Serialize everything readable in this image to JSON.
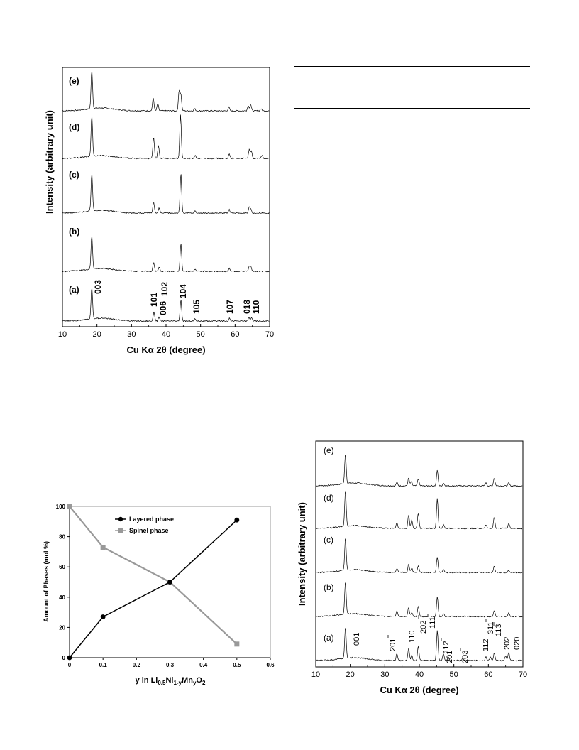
{
  "chart_data": [
    {
      "type": "line",
      "id": "xrd-top",
      "xlabel": "Cu Kα 2θ (degree)",
      "ylabel": "Intensity (arbitrary unit)",
      "xlim": [
        10,
        70
      ],
      "xticks": [
        10,
        20,
        30,
        40,
        50,
        60,
        70
      ],
      "grid": false,
      "series": [
        {
          "name": "(e)",
          "peaks": [
            [
              18.5,
              55
            ],
            [
              36.3,
              18
            ],
            [
              37.6,
              10
            ],
            [
              43.8,
              28
            ],
            [
              44.3,
              22
            ],
            [
              48.3,
              3
            ],
            [
              58.2,
              5
            ],
            [
              63.8,
              7
            ],
            [
              64.5,
              9
            ],
            [
              67.5,
              3
            ]
          ]
        },
        {
          "name": "(d)",
          "peaks": [
            [
              18.5,
              58
            ],
            [
              36.4,
              30
            ],
            [
              37.8,
              18
            ],
            [
              44.2,
              62
            ],
            [
              48.4,
              4
            ],
            [
              58.3,
              6
            ],
            [
              64.1,
              12
            ],
            [
              64.7,
              10
            ],
            [
              67.8,
              4
            ]
          ]
        },
        {
          "name": "(c)",
          "peaks": [
            [
              18.5,
              54
            ],
            [
              36.4,
              16
            ],
            [
              38.0,
              7
            ],
            [
              44.3,
              56
            ],
            [
              48.4,
              3
            ],
            [
              58.3,
              5
            ],
            [
              64.1,
              8
            ],
            [
              64.6,
              6
            ]
          ]
        },
        {
          "name": "(b)",
          "peaks": [
            [
              18.5,
              48
            ],
            [
              36.4,
              12
            ],
            [
              38.0,
              6
            ],
            [
              44.3,
              40
            ],
            [
              48.4,
              3
            ],
            [
              58.3,
              4
            ],
            [
              64.1,
              7
            ],
            [
              64.6,
              6
            ]
          ]
        },
        {
          "name": "(a)",
          "peaks": [
            [
              18.5,
              45
            ],
            [
              36.5,
              13
            ],
            [
              38.0,
              5
            ],
            [
              44.3,
              30
            ],
            [
              48.4,
              3
            ],
            [
              58.4,
              4
            ],
            [
              64.0,
              5
            ],
            [
              64.8,
              5
            ]
          ]
        }
      ],
      "annotations": [
        "003",
        "101",
        "006",
        "102",
        "104",
        "105",
        "107",
        "018",
        "110"
      ]
    },
    {
      "type": "line",
      "id": "phase-fraction",
      "xlabel": "y in Li0.5Ni1-yMnyO2",
      "ylabel": "Amount of Phases (mol %)",
      "xlim": [
        0,
        0.6
      ],
      "ylim": [
        0,
        100
      ],
      "xticks": [
        0,
        0.1,
        0.2,
        0.3,
        0.4,
        0.5,
        0.6
      ],
      "yticks": [
        0,
        20,
        40,
        60,
        80,
        100
      ],
      "legend": "top-center",
      "series": [
        {
          "name": "Layered phase",
          "x": [
            0,
            0.1,
            0.3,
            0.5
          ],
          "y": [
            0,
            27,
            50,
            91
          ],
          "color": "#000000",
          "marker": "circle"
        },
        {
          "name": "Spinel phase",
          "x": [
            0,
            0.1,
            0.3,
            0.5
          ],
          "y": [
            100,
            73,
            50,
            9
          ],
          "color": "#999999",
          "marker": "square"
        }
      ]
    },
    {
      "type": "line",
      "id": "xrd-bottom",
      "xlabel": "Cu Kα 2θ (degree)",
      "ylabel": "Intensity (arbitrary unit)",
      "xlim": [
        10,
        70
      ],
      "xticks": [
        10,
        20,
        30,
        40,
        50,
        60,
        70
      ],
      "grid": false,
      "series": [
        {
          "name": "(e)",
          "peaks": [
            [
              18.6,
              42
            ],
            [
              33.5,
              5
            ],
            [
              36.9,
              11
            ],
            [
              37.7,
              6
            ],
            [
              39.7,
              10
            ],
            [
              45.2,
              22
            ],
            [
              47.0,
              4
            ],
            [
              59.3,
              4
            ],
            [
              61.7,
              11
            ],
            [
              65.9,
              4
            ]
          ]
        },
        {
          "name": "(d)",
          "peaks": [
            [
              18.6,
              50
            ],
            [
              33.5,
              8
            ],
            [
              36.9,
              20
            ],
            [
              37.8,
              12
            ],
            [
              39.7,
              22
            ],
            [
              45.2,
              42
            ],
            [
              47.0,
              5
            ],
            [
              59.3,
              5
            ],
            [
              61.7,
              16
            ],
            [
              65.9,
              7
            ]
          ]
        },
        {
          "name": "(c)",
          "peaks": [
            [
              18.6,
              46
            ],
            [
              33.5,
              6
            ],
            [
              36.9,
              12
            ],
            [
              37.8,
              6
            ],
            [
              39.7,
              9
            ],
            [
              45.2,
              22
            ],
            [
              47.0,
              4
            ],
            [
              61.7,
              9
            ],
            [
              65.9,
              3
            ]
          ]
        },
        {
          "name": "(b)",
          "peaks": [
            [
              18.6,
              46
            ],
            [
              33.5,
              8
            ],
            [
              36.9,
              13
            ],
            [
              37.8,
              6
            ],
            [
              39.7,
              14
            ],
            [
              45.2,
              28
            ],
            [
              47.0,
              4
            ],
            [
              61.7,
              8
            ],
            [
              65.9,
              5
            ]
          ]
        },
        {
          "name": "(a)",
          "peaks": [
            [
              18.6,
              44
            ],
            [
              33.5,
              10
            ],
            [
              36.9,
              18
            ],
            [
              37.8,
              7
            ],
            [
              39.7,
              20
            ],
            [
              45.2,
              42
            ],
            [
              47.0,
              10
            ],
            [
              48.4,
              5
            ],
            [
              52.6,
              3
            ],
            [
              59.3,
              5
            ],
            [
              60.6,
              5
            ],
            [
              61.7,
              10
            ],
            [
              65.0,
              7
            ],
            [
              65.9,
              11
            ]
          ]
        }
      ],
      "annotations": [
        "001",
        "201",
        "110",
        "202",
        "111",
        "112",
        "201",
        "203",
        "112",
        "311",
        "113",
        "202",
        "020"
      ]
    }
  ]
}
